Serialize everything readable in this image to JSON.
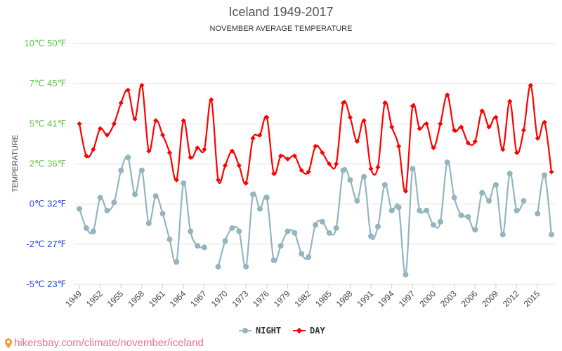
{
  "chart_data": {
    "type": "line",
    "title": "Iceland 1949-2017",
    "subtitle": "NOVEMBER AVERAGE TEMPERATURE",
    "ylabel": "TEMPERATURE",
    "ylim": [
      -5,
      10
    ],
    "grid": true,
    "legend_placement": "bottom",
    "y_ticks": [
      {
        "value": 10,
        "label": "10℃ 50℉",
        "color": "#5fc24a"
      },
      {
        "value": 7.5,
        "label": "7℃ 45℉",
        "color": "#5fc24a"
      },
      {
        "value": 5,
        "label": "5℃ 41℉",
        "color": "#5fc24a"
      },
      {
        "value": 2.5,
        "label": "2℃ 36℉",
        "color": "#5fc24a"
      },
      {
        "value": 0,
        "label": "0℃ 32℉",
        "color": "#2244ee"
      },
      {
        "value": -2.5,
        "label": "-2℃ 27℉",
        "color": "#2244ee"
      },
      {
        "value": -5,
        "label": "-5℃ 23℉",
        "color": "#2244ee"
      }
    ],
    "x_tick_labels": [
      "1949",
      "1952",
      "1955",
      "1958",
      "1961",
      "1964",
      "1967",
      "1970",
      "1973",
      "1976",
      "1979",
      "1982",
      "1985",
      "1988",
      "1991",
      "1994",
      "1997",
      "2000",
      "2003",
      "2006",
      "2009",
      "2012",
      "2015"
    ],
    "x_start": 1949,
    "x_end": 2017,
    "series": [
      {
        "name": "NIGHT",
        "color": "#93b5bf",
        "values": [
          -0.3,
          -1.5,
          -1.7,
          0.4,
          -0.4,
          0.1,
          2.1,
          2.9,
          0.6,
          2.1,
          -1.2,
          0.5,
          -0.6,
          -2.2,
          -3.6,
          1.3,
          -1.7,
          -2.6,
          -2.7,
          null,
          -3.9,
          -2.3,
          -1.5,
          -1.7,
          -3.9,
          0.6,
          -0.3,
          0.4,
          -3.5,
          -2.6,
          -1.7,
          -1.8,
          -3.1,
          -3.3,
          -1.3,
          -1.1,
          -1.8,
          -1.5,
          2.1,
          1.5,
          0.2,
          1.7,
          -2.0,
          -1.4,
          1.2,
          -0.4,
          -0.2,
          -4.4,
          2.2,
          -0.4,
          -0.4,
          -1.3,
          -1.1,
          2.6,
          0.4,
          -0.7,
          -0.8,
          -1.6,
          0.7,
          0.2,
          1.2,
          -1.9,
          1.9,
          -0.4,
          0.2,
          null,
          -0.6,
          1.8,
          -1.9
        ]
      },
      {
        "name": "DAY",
        "color": "#ff0000",
        "values": [
          5.0,
          3.0,
          3.4,
          4.7,
          4.3,
          5.0,
          6.3,
          7.1,
          5.3,
          7.4,
          3.3,
          5.2,
          4.3,
          3.2,
          1.5,
          5.2,
          2.9,
          3.5,
          3.4,
          6.5,
          1.5,
          2.4,
          3.3,
          2.4,
          1.3,
          4.1,
          4.3,
          5.4,
          1.9,
          3.0,
          2.8,
          3.0,
          2.1,
          2.0,
          3.6,
          3.2,
          2.5,
          2.5,
          6.3,
          5.4,
          3.9,
          5.2,
          2.2,
          2.3,
          6.3,
          4.8,
          3.6,
          0.8,
          6.1,
          4.7,
          5.0,
          3.5,
          5.0,
          6.8,
          4.6,
          4.8,
          3.8,
          3.9,
          5.8,
          4.8,
          5.4,
          3.4,
          6.4,
          3.2,
          4.6,
          7.4,
          4.1,
          5.1,
          2.0
        ]
      }
    ]
  },
  "source": "hikersbay.com/climate/november/iceland"
}
